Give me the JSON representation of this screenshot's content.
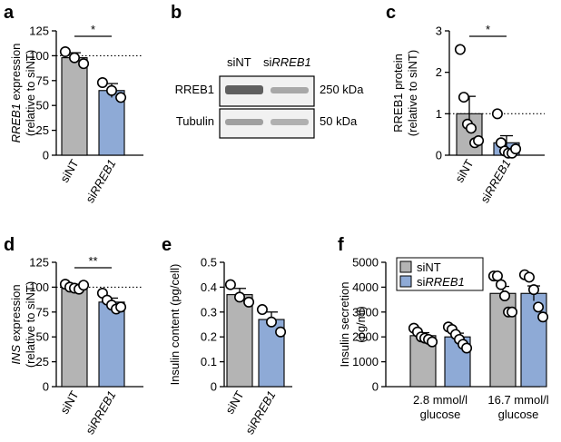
{
  "colors": {
    "grey": "#b4b4b4",
    "blue": "#8eaad6",
    "axis": "#000000"
  },
  "panels": {
    "a": "a",
    "b": "b",
    "c": "c",
    "d": "d",
    "e": "e",
    "f": "f"
  },
  "blot": {
    "lanes": [
      "siNT",
      "si",
      "RREB1"
    ],
    "rows": [
      {
        "label": "RREB1",
        "size": "250 kDa"
      },
      {
        "label": "Tubulin",
        "size": "50 kDa"
      }
    ]
  },
  "chart_data": [
    {
      "panel": "a",
      "type": "bar",
      "categories": [
        [
          "siNT",
          ""
        ],
        [
          "si",
          "RREB1"
        ]
      ],
      "values": [
        98,
        65
      ],
      "errors": [
        5,
        7
      ],
      "points": [
        [
          104,
          98,
          92
        ],
        [
          73,
          65,
          58
        ]
      ],
      "ylabel": [
        "RREB1",
        " expression"
      ],
      "ylabel2": "(relative to siNT)",
      "ylim": [
        0,
        125
      ],
      "yticks": [
        0,
        25,
        50,
        75,
        100,
        125
      ],
      "reference_line": 100,
      "significance": "*"
    },
    {
      "panel": "c",
      "type": "bar",
      "categories": [
        [
          "siNT",
          ""
        ],
        [
          "si",
          "RREB1"
        ]
      ],
      "values": [
        1.0,
        0.3
      ],
      "errors": [
        0.42,
        0.17
      ],
      "points": [
        [
          2.55,
          1.4,
          0.75,
          0.65,
          0.3,
          0.35
        ],
        [
          1.0,
          0.3,
          0.1,
          0.05,
          0.05,
          0.15
        ]
      ],
      "ylabel": [
        "RREB1 protein",
        ""
      ],
      "ylabel2": "(relative to siNT)",
      "ylim": [
        0,
        3
      ],
      "yticks": [
        0,
        1,
        2,
        3
      ],
      "reference_line": 1,
      "significance": "*"
    },
    {
      "panel": "d",
      "type": "bar",
      "categories": [
        [
          "siNT",
          ""
        ],
        [
          "si",
          "RREB1"
        ]
      ],
      "values": [
        100,
        85
      ],
      "errors": [
        3,
        4
      ],
      "points": [
        [
          103,
          100,
          99,
          98,
          102
        ],
        [
          94,
          87,
          82,
          78,
          80
        ]
      ],
      "ylabel": [
        "INS",
        " expression"
      ],
      "ylabel2": "(relative to siNT)",
      "ylim": [
        0,
        125
      ],
      "yticks": [
        0,
        25,
        50,
        75,
        100,
        125
      ],
      "reference_line": 100,
      "significance": "**"
    },
    {
      "panel": "e",
      "type": "bar",
      "categories": [
        [
          "siNT",
          ""
        ],
        [
          "si",
          "RREB1"
        ]
      ],
      "values": [
        0.37,
        0.27
      ],
      "errors": [
        0.025,
        0.03
      ],
      "points": [
        [
          0.41,
          0.36,
          0.34
        ],
        [
          0.31,
          0.26,
          0.22
        ]
      ],
      "ylabel": [
        "Insulin content (pg/cell)",
        ""
      ],
      "ylabel2": "",
      "ylim": [
        0,
        0.5
      ],
      "yticks": [
        0,
        0.1,
        0.2,
        0.3,
        0.4,
        0.5
      ],
      "ytick_labels": [
        "0",
        "0.1",
        "0.2",
        "0.3",
        "0.4",
        "0.5"
      ]
    },
    {
      "panel": "f",
      "type": "bar",
      "groups": [
        [
          "2.8 mmol/l",
          "glucose"
        ],
        [
          "16.7 mmol/l",
          "glucose"
        ]
      ],
      "series": [
        {
          "name": "siNT",
          "values": [
            2050,
            3750
          ],
          "errors": [
            120,
            280
          ],
          "points": [
            [
              2350,
              2200,
              2000,
              1950,
              1900,
              1800
            ],
            [
              4450,
              4450,
              4100,
              3650,
              3000,
              3000
            ]
          ]
        },
        {
          "name": [
            "si",
            "RREB1"
          ],
          "values": [
            2000,
            3750
          ],
          "errors": [
            150,
            300
          ],
          "points": [
            [
              2400,
              2300,
              2100,
              1900,
              1700,
              1550
            ],
            [
              4500,
              4400,
              3900,
              3200,
              2800
            ]
          ]
        }
      ],
      "legend": [
        [
          "siNT",
          ""
        ],
        [
          "si",
          "RREB1"
        ]
      ],
      "legend_position": "top-left",
      "ylabel": [
        "Insulin secretion",
        ""
      ],
      "ylabel2": "(pg/ml)",
      "ylim": [
        0,
        5000
      ],
      "yticks": [
        0,
        1000,
        2000,
        3000,
        4000,
        5000
      ]
    }
  ]
}
